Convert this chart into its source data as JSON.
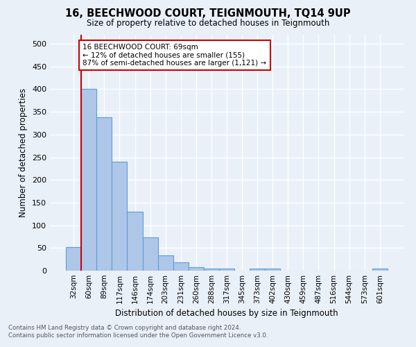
{
  "title": "16, BEECHWOOD COURT, TEIGNMOUTH, TQ14 9UP",
  "subtitle": "Size of property relative to detached houses in Teignmouth",
  "xlabel": "Distribution of detached houses by size in Teignmouth",
  "ylabel": "Number of detached properties",
  "footer_line1": "Contains HM Land Registry data © Crown copyright and database right 2024.",
  "footer_line2": "Contains public sector information licensed under the Open Government Licence v3.0.",
  "bar_labels": [
    "32sqm",
    "60sqm",
    "89sqm",
    "117sqm",
    "146sqm",
    "174sqm",
    "203sqm",
    "231sqm",
    "260sqm",
    "288sqm",
    "317sqm",
    "345sqm",
    "373sqm",
    "402sqm",
    "430sqm",
    "459sqm",
    "487sqm",
    "516sqm",
    "544sqm",
    "573sqm",
    "601sqm"
  ],
  "bar_values": [
    52,
    400,
    338,
    240,
    130,
    74,
    33,
    18,
    7,
    5,
    4,
    0,
    5,
    5,
    0,
    0,
    0,
    0,
    0,
    0,
    5
  ],
  "bar_color": "#aec6e8",
  "bar_edge_color": "#5a9fd4",
  "bg_color": "#eaf0f8",
  "grid_color": "#ffffff",
  "annotation_line1": "16 BEECHWOOD COURT: 69sqm",
  "annotation_line2": "← 12% of detached houses are smaller (155)",
  "annotation_line3": "87% of semi-detached houses are larger (1,121) →",
  "annotation_box_color": "#ffffff",
  "annotation_box_edge_color": "#cc0000",
  "vline_color": "#cc0000",
  "ylim": [
    0,
    520
  ],
  "yticks": [
    0,
    50,
    100,
    150,
    200,
    250,
    300,
    350,
    400,
    450,
    500
  ]
}
